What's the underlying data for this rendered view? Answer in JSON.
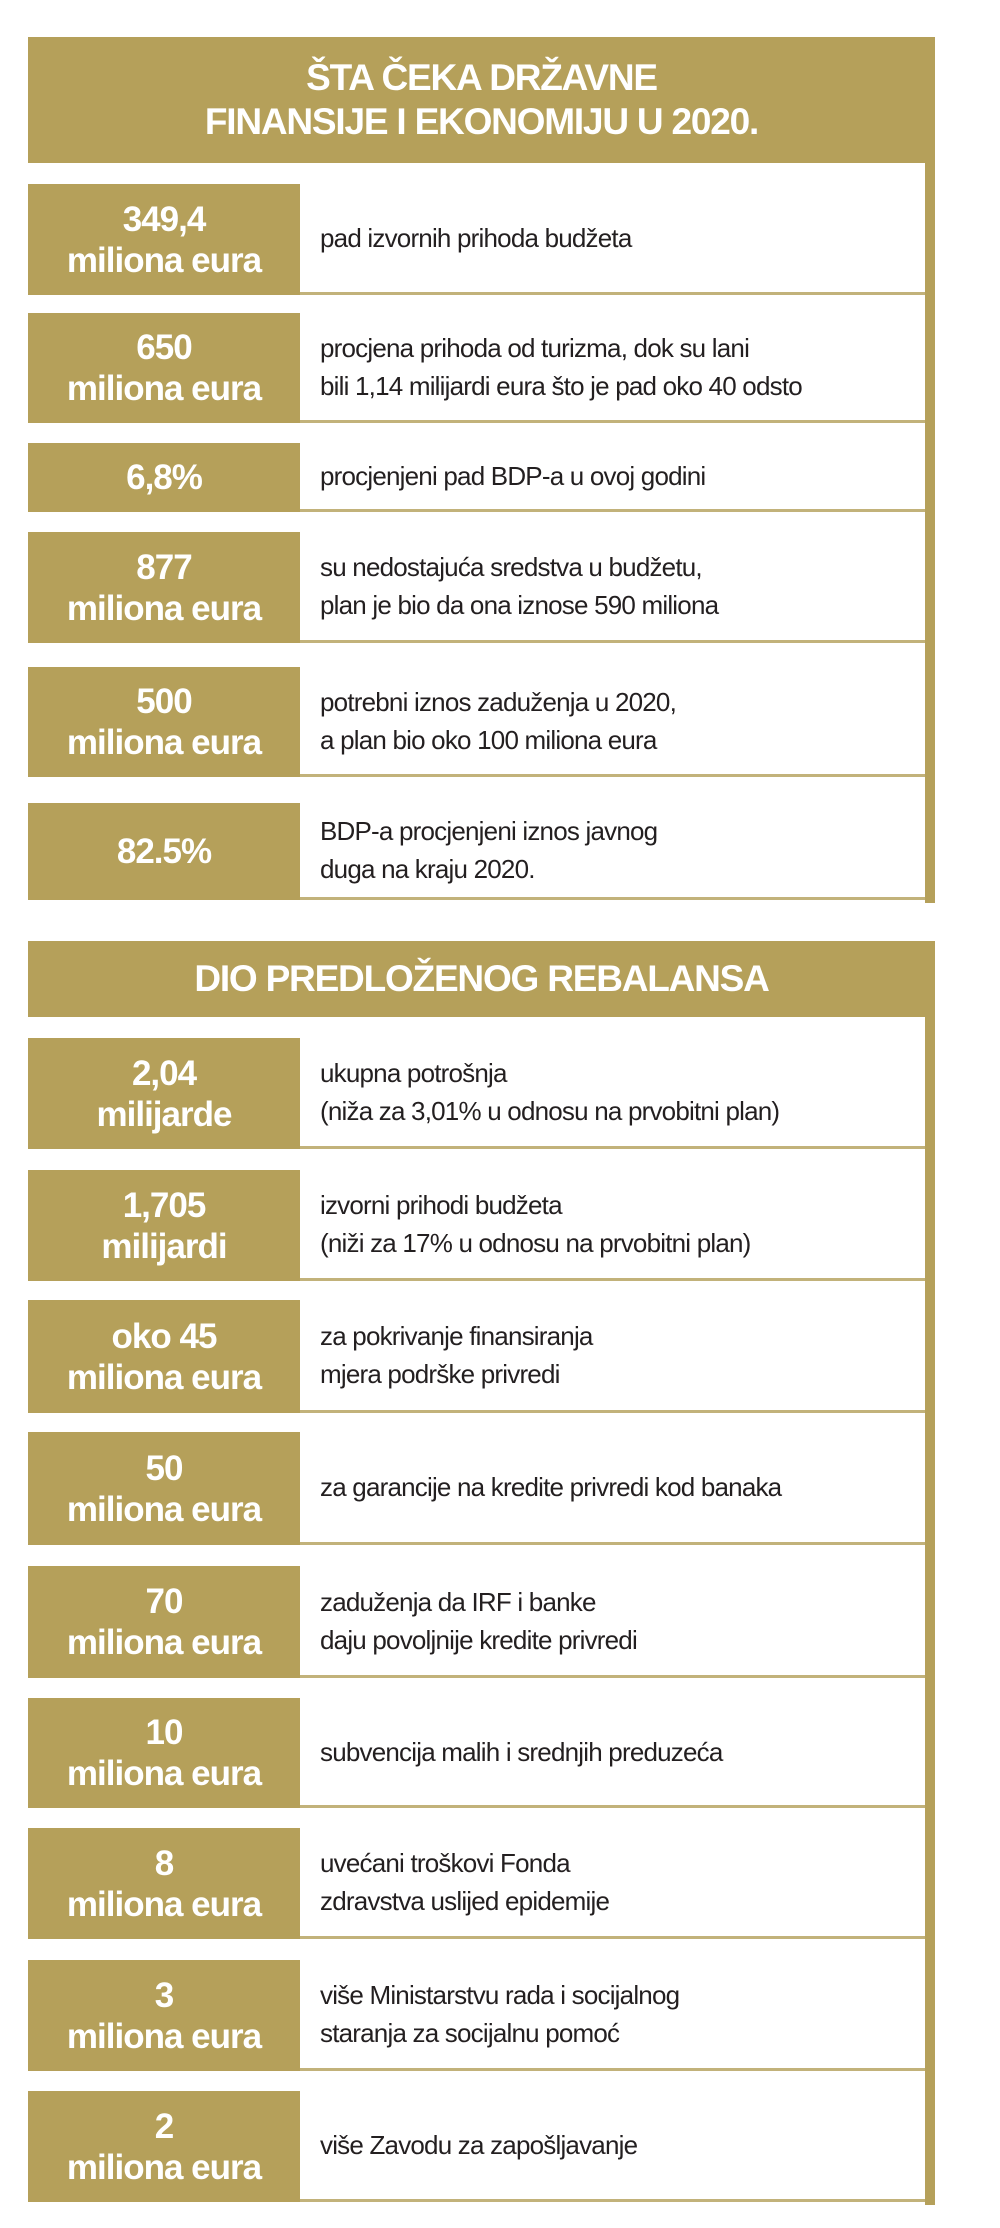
{
  "colors": {
    "gold": "#b5a05a",
    "text": "#231f20"
  },
  "sections": [
    {
      "title_lines": [
        "ŠTA ČEKA DRŽAVNE",
        "FINANSIJE I EKONOMIJU U 2020."
      ],
      "rows": [
        {
          "value": [
            "349,4",
            "miliona eura"
          ],
          "desc": [
            "pad izvornih prihoda budžeta"
          ]
        },
        {
          "value": [
            "650",
            "miliona eura"
          ],
          "desc": [
            "procjena prihoda od turizma, dok su lani",
            "bili 1,14 milijardi eura što je pad oko 40 odsto"
          ]
        },
        {
          "value": [
            "6,8%"
          ],
          "desc": [
            "procjenjeni pad BDP-a u ovoj godini"
          ]
        },
        {
          "value": [
            "877",
            "miliona eura"
          ],
          "desc": [
            "su nedostajuća sredstva u budžetu,",
            "plan je bio da ona iznose 590 miliona"
          ]
        },
        {
          "value": [
            "500",
            "miliona eura"
          ],
          "desc": [
            "potrebni iznos zaduženja u 2020,",
            "a plan bio oko 100 miliona eura"
          ]
        },
        {
          "value": [
            "82.5%"
          ],
          "desc": [
            "BDP-a procjenjeni iznos javnog",
            "duga na kraju 2020."
          ]
        }
      ]
    },
    {
      "title_lines": [
        "DIO PREDLOŽENOG REBALANSA"
      ],
      "rows": [
        {
          "value": [
            "2,04",
            "milijarde"
          ],
          "desc": [
            "ukupna potrošnja",
            "(niža za 3,01% u odnosu na prvobitni plan)"
          ]
        },
        {
          "value": [
            "1,705",
            "milijardi"
          ],
          "desc": [
            "izvorni prihodi budžeta",
            "(niži za 17% u odnosu na prvobitni plan)"
          ]
        },
        {
          "value": [
            "oko 45",
            "miliona eura"
          ],
          "desc": [
            "za pokrivanje finansiranja",
            "mjera podrške privredi"
          ]
        },
        {
          "value": [
            "50",
            "miliona eura"
          ],
          "desc": [
            "za garancije na kredite privredi kod banaka"
          ]
        },
        {
          "value": [
            "70",
            "miliona eura"
          ],
          "desc": [
            "zaduženja da IRF i banke",
            "daju povoljnije kredite privredi"
          ]
        },
        {
          "value": [
            "10",
            "miliona eura"
          ],
          "desc": [
            "subvencija malih i srednjih preduzeća"
          ]
        },
        {
          "value": [
            "8",
            "miliona eura"
          ],
          "desc": [
            "uvećani troškovi Fonda",
            "zdravstva uslijed epidemije"
          ]
        },
        {
          "value": [
            "3",
            "miliona eura"
          ],
          "desc": [
            "više Ministarstvu rada i socijalnog",
            "staranja za socijalnu pomoć"
          ]
        },
        {
          "value": [
            "2",
            "miliona eura"
          ],
          "desc": [
            "više Zavodu za zapošljavanje"
          ]
        }
      ]
    }
  ]
}
